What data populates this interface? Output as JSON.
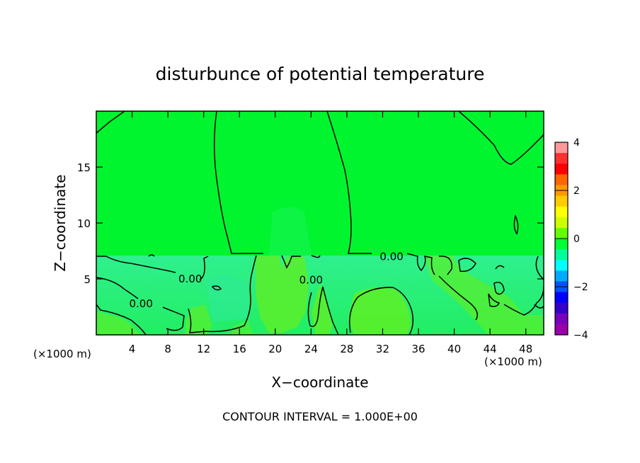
{
  "chart_data": {
    "type": "heatmap",
    "title": "disturbunce of potential temperature",
    "xlabel": "X−coordinate",
    "ylabel": "Z−coordinate",
    "x_unit_left": "(×1000 m)",
    "x_unit_right": "(×1000 m)",
    "footer": "CONTOUR INTERVAL = 1.000E+00",
    "xlim": [
      0,
      50
    ],
    "ylim": [
      0,
      20
    ],
    "x_ticks": [
      4,
      8,
      12,
      16,
      20,
      24,
      28,
      32,
      36,
      40,
      44,
      48
    ],
    "x_tick_labels": [
      "4",
      "8",
      "12",
      "16",
      "20",
      "24",
      "28",
      "32",
      "36",
      "40",
      "44",
      "48"
    ],
    "y_ticks": [
      5,
      10,
      15
    ],
    "y_tick_labels": [
      "5",
      "10",
      "15"
    ],
    "colorbar": {
      "range": [
        -4,
        4
      ],
      "ticks": [
        4,
        2,
        0,
        -2,
        -4
      ],
      "tick_labels": [
        "4",
        "2",
        "0",
        "−2",
        "−4"
      ],
      "colors": [
        "#ff9999",
        "#ff3030",
        "#ff0000",
        "#ff6600",
        "#ff9900",
        "#ffcc00",
        "#ffff00",
        "#ccff00",
        "#66ff00",
        "#00ff33",
        "#00ff99",
        "#00ffff",
        "#00aaff",
        "#0055ff",
        "#0000ff",
        "#3300cc",
        "#7700bb",
        "#9900aa"
      ]
    },
    "contour_labels": [
      {
        "text": "0.00",
        "x": 33,
        "y": 7.0
      },
      {
        "text": "0.00",
        "x": 10.5,
        "y": 5.0
      },
      {
        "text": "0.00",
        "x": 5.0,
        "y": 2.8
      },
      {
        "text": "0.00",
        "x": 24.0,
        "y": 4.9
      }
    ],
    "field_colors": {
      "upper": "#00f52e",
      "lower": "#22f07a",
      "warm": "#58f02a"
    }
  }
}
